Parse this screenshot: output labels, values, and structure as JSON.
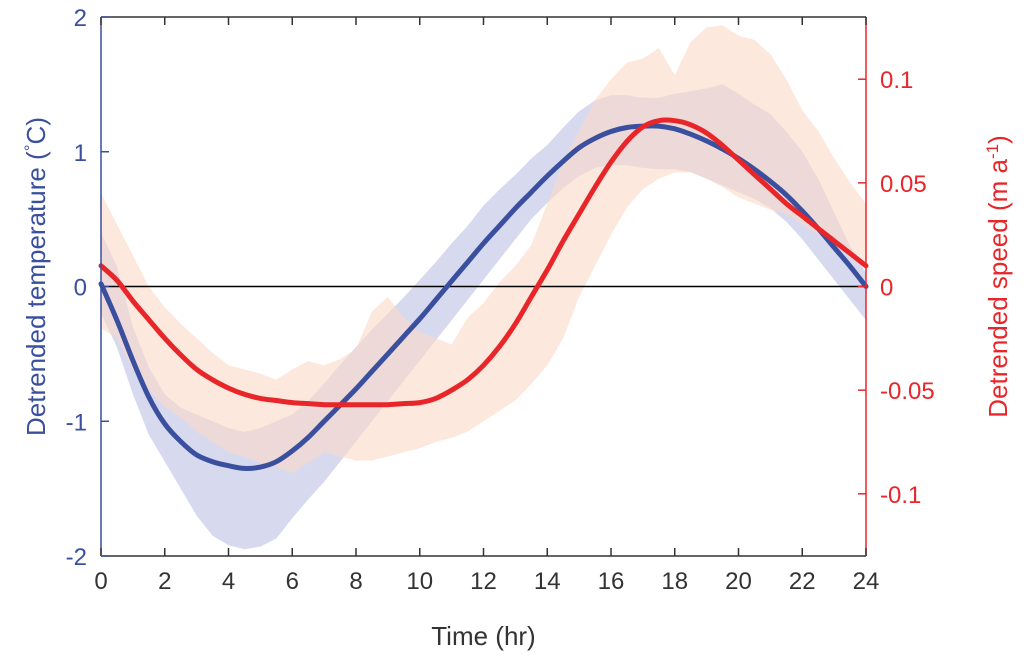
{
  "chart_data": {
    "type": "line",
    "title": "",
    "xlabel": "Time (hr)",
    "xlim": [
      0,
      24
    ],
    "xticks": [
      "0",
      "2",
      "4",
      "6",
      "8",
      "10",
      "12",
      "14",
      "16",
      "18",
      "20",
      "22",
      "24"
    ],
    "y_left": {
      "label": "Detrended temperature (°C)",
      "label_main": "Detrended temperature (",
      "label_sup": "°",
      "label_end": "C)",
      "lim": [
        -2,
        2
      ],
      "ticks": [
        "-2",
        "-1",
        "0",
        "1",
        "2"
      ],
      "color": "#3a4f9e"
    },
    "y_right": {
      "label": "Detrended speed (m a⁻¹)",
      "label_main": "Detrended speed (m a",
      "label_sup": "-1",
      "label_end": ")",
      "lim": [
        -0.13,
        0.13
      ],
      "ticks": [
        "0.1",
        "0.05",
        "0",
        "-0.05",
        "-0.1"
      ],
      "tick_values": [
        0.1,
        0.05,
        0,
        -0.05,
        -0.1
      ],
      "color": "#e8262a"
    },
    "zero_line": true,
    "grid": false,
    "series": [
      {
        "axis": "left",
        "color": "#3a4f9e",
        "band_color": "#c9cdea",
        "x": [
          0,
          0.5,
          1,
          1.5,
          2,
          2.5,
          3,
          3.5,
          4,
          4.5,
          5,
          5.5,
          6,
          6.5,
          7,
          7.5,
          8,
          8.5,
          9,
          9.5,
          10,
          10.5,
          11,
          11.5,
          12,
          12.5,
          13,
          13.5,
          14,
          14.5,
          15,
          15.5,
          16,
          16.5,
          17,
          17.5,
          18,
          18.5,
          19,
          19.5,
          20,
          20.5,
          21,
          21.5,
          22,
          22.5,
          23,
          23.5,
          24
        ],
        "values": [
          0.02,
          -0.25,
          -0.55,
          -0.82,
          -1.02,
          -1.15,
          -1.25,
          -1.3,
          -1.33,
          -1.35,
          -1.34,
          -1.3,
          -1.22,
          -1.12,
          -1.0,
          -0.88,
          -0.76,
          -0.63,
          -0.5,
          -0.37,
          -0.24,
          -0.1,
          0.04,
          0.18,
          0.32,
          0.45,
          0.58,
          0.7,
          0.82,
          0.93,
          1.03,
          1.1,
          1.15,
          1.18,
          1.19,
          1.19,
          1.17,
          1.13,
          1.08,
          1.02,
          0.95,
          0.87,
          0.78,
          0.68,
          0.56,
          0.43,
          0.29,
          0.15,
          0.0
        ],
        "upper": [
          0.4,
          0.15,
          -0.3,
          -0.6,
          -0.8,
          -0.9,
          -0.95,
          -1.0,
          -1.05,
          -1.08,
          -1.05,
          -1.0,
          -0.95,
          -0.85,
          -0.72,
          -0.58,
          -0.45,
          -0.32,
          -0.2,
          -0.08,
          0.05,
          0.18,
          0.32,
          0.45,
          0.6,
          0.72,
          0.83,
          0.95,
          1.05,
          1.18,
          1.3,
          1.38,
          1.42,
          1.42,
          1.4,
          1.4,
          1.43,
          1.45,
          1.47,
          1.5,
          1.43,
          1.35,
          1.28,
          1.15,
          1.0,
          0.8,
          0.55,
          0.3,
          0.1
        ],
        "lower": [
          -0.2,
          -0.45,
          -0.8,
          -1.1,
          -1.3,
          -1.5,
          -1.7,
          -1.85,
          -1.92,
          -1.95,
          -1.93,
          -1.87,
          -1.72,
          -1.58,
          -1.45,
          -1.3,
          -1.15,
          -1.0,
          -0.85,
          -0.7,
          -0.55,
          -0.4,
          -0.25,
          -0.1,
          0.05,
          0.2,
          0.35,
          0.5,
          0.62,
          0.73,
          0.82,
          0.88,
          0.9,
          0.9,
          0.88,
          0.87,
          0.87,
          0.85,
          0.8,
          0.75,
          0.7,
          0.65,
          0.58,
          0.48,
          0.35,
          0.2,
          0.05,
          -0.1,
          -0.25
        ]
      },
      {
        "axis": "right",
        "color": "#e8262a",
        "band_color": "#fbd9c6",
        "x": [
          0,
          0.5,
          1,
          1.5,
          2,
          2.5,
          3,
          3.5,
          4,
          4.5,
          5,
          5.5,
          6,
          6.5,
          7,
          7.5,
          8,
          8.5,
          9,
          9.5,
          10,
          10.5,
          11,
          11.5,
          12,
          12.5,
          13,
          13.5,
          14,
          14.5,
          15,
          15.5,
          16,
          16.5,
          17,
          17.5,
          18,
          18.5,
          19,
          19.5,
          20,
          20.5,
          21,
          21.5,
          22,
          22.5,
          23,
          23.5,
          24
        ],
        "values": [
          0.01,
          0.003,
          -0.007,
          -0.016,
          -0.025,
          -0.033,
          -0.04,
          -0.045,
          -0.049,
          -0.052,
          -0.054,
          -0.055,
          -0.056,
          -0.0565,
          -0.057,
          -0.057,
          -0.057,
          -0.057,
          -0.057,
          -0.0565,
          -0.056,
          -0.054,
          -0.05,
          -0.045,
          -0.038,
          -0.029,
          -0.018,
          -0.005,
          0.008,
          0.022,
          0.035,
          0.048,
          0.06,
          0.07,
          0.077,
          0.08,
          0.08,
          0.078,
          0.074,
          0.068,
          0.061,
          0.054,
          0.047,
          0.04,
          0.034,
          0.028,
          0.022,
          0.016,
          0.01
        ],
        "upper": [
          0.045,
          0.03,
          0.015,
          0.0,
          -0.01,
          -0.018,
          -0.025,
          -0.032,
          -0.038,
          -0.04,
          -0.042,
          -0.045,
          -0.04,
          -0.036,
          -0.038,
          -0.035,
          -0.03,
          -0.012,
          -0.005,
          -0.015,
          -0.022,
          -0.025,
          -0.028,
          -0.015,
          -0.008,
          0.002,
          0.01,
          0.02,
          0.04,
          0.06,
          0.075,
          0.09,
          0.1,
          0.108,
          0.11,
          0.115,
          0.102,
          0.118,
          0.125,
          0.126,
          0.121,
          0.119,
          0.112,
          0.1,
          0.085,
          0.075,
          0.062,
          0.05,
          0.04
        ],
        "lower": [
          -0.02,
          -0.025,
          -0.04,
          -0.05,
          -0.058,
          -0.063,
          -0.07,
          -0.075,
          -0.08,
          -0.082,
          -0.085,
          -0.087,
          -0.09,
          -0.085,
          -0.08,
          -0.082,
          -0.084,
          -0.084,
          -0.082,
          -0.08,
          -0.078,
          -0.075,
          -0.073,
          -0.07,
          -0.065,
          -0.06,
          -0.055,
          -0.047,
          -0.038,
          -0.025,
          -0.005,
          0.01,
          0.025,
          0.038,
          0.047,
          0.052,
          0.055,
          0.055,
          0.052,
          0.048,
          0.043,
          0.04,
          0.037,
          0.035,
          0.03,
          0.025,
          0.02,
          0.015,
          0.008
        ]
      }
    ]
  }
}
